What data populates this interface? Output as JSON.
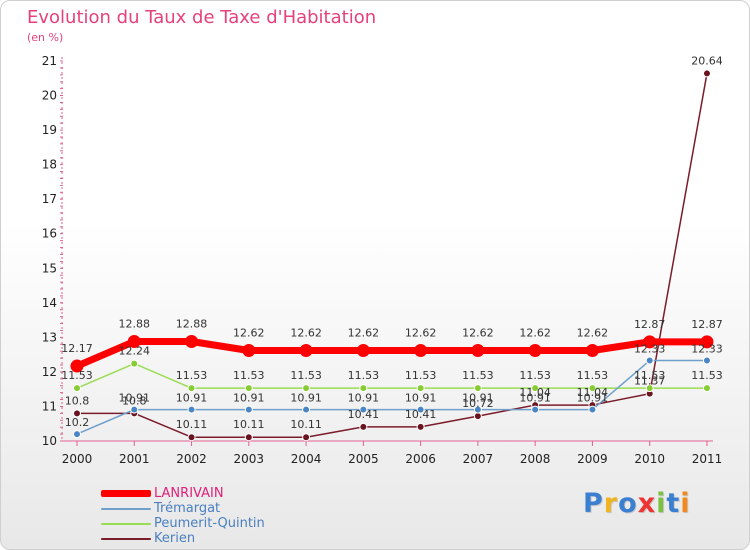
{
  "chart_data": {
    "type": "line",
    "title": "Evolution du Taux de Taxe d'Habitation",
    "ylabel": "(en %)",
    "xlabel": "",
    "ylim": [
      10,
      21
    ],
    "y_ticks": [
      10,
      11,
      12,
      13,
      14,
      15,
      16,
      17,
      18,
      19,
      20,
      21
    ],
    "categories": [
      "2000",
      "2001",
      "2002",
      "2003",
      "2004",
      "2005",
      "2006",
      "2007",
      "2008",
      "2009",
      "2010",
      "2011"
    ],
    "series": [
      {
        "name": "LANRIVAIN",
        "color": "#ff0000",
        "values": [
          12.17,
          12.88,
          12.88,
          12.62,
          12.62,
          12.62,
          12.62,
          12.62,
          12.62,
          12.62,
          12.87,
          12.87
        ],
        "labels": [
          "12.17",
          "12.88",
          "12.88",
          "12.62",
          "12.62",
          "12.62",
          "12.62",
          "12.62",
          "12.62",
          "12.62",
          "12.87",
          "12.87"
        ]
      },
      {
        "name": "Trémargat",
        "color": "#6fa0cc",
        "values": [
          10.2,
          10.91,
          10.91,
          10.91,
          10.91,
          10.91,
          10.91,
          10.91,
          10.91,
          10.91,
          12.33,
          12.33
        ],
        "labels": [
          "10.2",
          "10.91",
          "10.91",
          "10.91",
          "10.91",
          "10.91",
          "10.91",
          "10.91",
          "10.91",
          "10.91",
          "12.33",
          "12.33"
        ]
      },
      {
        "name": "Peumerit-Quintin",
        "color": "#99dd55",
        "values": [
          11.53,
          12.24,
          11.53,
          11.53,
          11.53,
          11.53,
          11.53,
          11.53,
          11.53,
          11.53,
          11.53,
          11.53
        ],
        "labels": [
          "11.53",
          "12.24",
          "11.53",
          "11.53",
          "11.53",
          "11.53",
          "11.53",
          "11.53",
          "11.53",
          "11.53",
          "11.53",
          "11.53"
        ]
      },
      {
        "name": "Kerien",
        "color": "#7a1c2a",
        "values": [
          10.8,
          10.8,
          10.11,
          10.11,
          10.11,
          10.41,
          10.41,
          10.72,
          11.04,
          11.04,
          11.37,
          20.64
        ],
        "labels": [
          "10.8",
          "10.8",
          "10.11",
          "10.11",
          "10.11",
          "10.41",
          "10.41",
          "10.72",
          "11.04",
          "11.04",
          "11.37",
          "20.64"
        ]
      }
    ],
    "legend_position": "bottom-left"
  },
  "brand": {
    "name": "Proxiti",
    "letters": [
      "P",
      "r",
      "o",
      "x",
      "i",
      "t",
      "i"
    ],
    "colors": [
      "#3a7fd0",
      "#f0b41e",
      "#3a7fd0",
      "#ee3333",
      "#7cc242",
      "#3a7fd0",
      "#f08a1e"
    ]
  }
}
